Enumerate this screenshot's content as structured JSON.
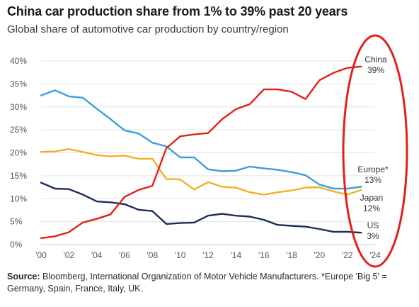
{
  "title": "China car production share from 1% to 39% past 20 years",
  "subtitle": "Global share of automotive car production by country/region",
  "source": {
    "label": "Source:",
    "text": "Bloomberg, International Organization of Motor Vehicle Manufacturers. *Europe 'Big 5' = Germany, Spain, France, Italy, UK."
  },
  "colors": {
    "China": "#e0201b",
    "Europe*": "#3b9fd8",
    "Japan": "#f2b027",
    "US": "#1d2d5c",
    "highlight": "#e0201b",
    "grid": "#e3e3e3",
    "baseline": "#cccccc"
  },
  "chart_data": {
    "type": "line",
    "title": "China car production share from 1% to 39% past 20 years",
    "subtitle": "Global share of automotive car production by country/region",
    "xlabel": "",
    "ylabel": "",
    "x": [
      2000,
      2001,
      2002,
      2003,
      2004,
      2005,
      2006,
      2007,
      2008,
      2009,
      2010,
      2011,
      2012,
      2013,
      2014,
      2015,
      2016,
      2017,
      2018,
      2019,
      2020,
      2021,
      2022,
      2023
    ],
    "x_tick_values": [
      2000,
      2002,
      2004,
      2006,
      2008,
      2010,
      2012,
      2014,
      2016,
      2018,
      2020,
      2022,
      2024
    ],
    "x_tick_labels": [
      "'00",
      "'02",
      "'04",
      "'06",
      "'08",
      "'10",
      "'12",
      "'14",
      "'16",
      "'18",
      "'20",
      "'22",
      "'24"
    ],
    "xlim": [
      2000,
      2024
    ],
    "y_tick_values": [
      0,
      5,
      10,
      15,
      20,
      25,
      30,
      35,
      40
    ],
    "y_tick_labels": [
      "0%",
      "5%",
      "10%",
      "15%",
      "20%",
      "25%",
      "30%",
      "35%",
      "40%"
    ],
    "ylim": [
      0,
      40
    ],
    "grid": true,
    "series": [
      {
        "name": "China",
        "end_label": "China",
        "end_value": "39%",
        "values": [
          1.4,
          1.8,
          2.7,
          4.8,
          5.6,
          6.6,
          10.4,
          11.9,
          12.8,
          21.0,
          23.6,
          24.0,
          24.3,
          27.3,
          29.5,
          30.6,
          33.8,
          33.8,
          33.3,
          31.7,
          35.8,
          37.4,
          38.5,
          38.8
        ]
      },
      {
        "name": "Europe*",
        "end_label": "Europe*",
        "end_value": "13%",
        "values": [
          32.5,
          33.6,
          32.3,
          32.0,
          29.6,
          27.3,
          24.9,
          24.2,
          22.2,
          21.4,
          19.0,
          19.0,
          16.4,
          16.0,
          16.1,
          17.0,
          16.6,
          16.3,
          15.8,
          15.1,
          13.1,
          12.2,
          12.2,
          12.6
        ]
      },
      {
        "name": "Japan",
        "end_label": "Japan",
        "end_value": "12%",
        "values": [
          20.2,
          20.3,
          20.8,
          20.2,
          19.5,
          19.2,
          19.4,
          18.7,
          18.7,
          14.3,
          14.2,
          12.0,
          13.6,
          12.6,
          12.4,
          11.4,
          10.9,
          11.4,
          11.8,
          12.4,
          12.5,
          11.6,
          10.9,
          11.9
        ]
      },
      {
        "name": "US",
        "end_label": "US",
        "end_value": "3%",
        "values": [
          13.5,
          12.2,
          12.1,
          10.9,
          9.4,
          9.2,
          8.8,
          7.6,
          7.3,
          4.5,
          4.7,
          4.8,
          6.3,
          6.7,
          6.3,
          6.1,
          5.4,
          4.3,
          4.1,
          3.9,
          3.4,
          2.8,
          2.8,
          2.6
        ]
      }
    ]
  }
}
